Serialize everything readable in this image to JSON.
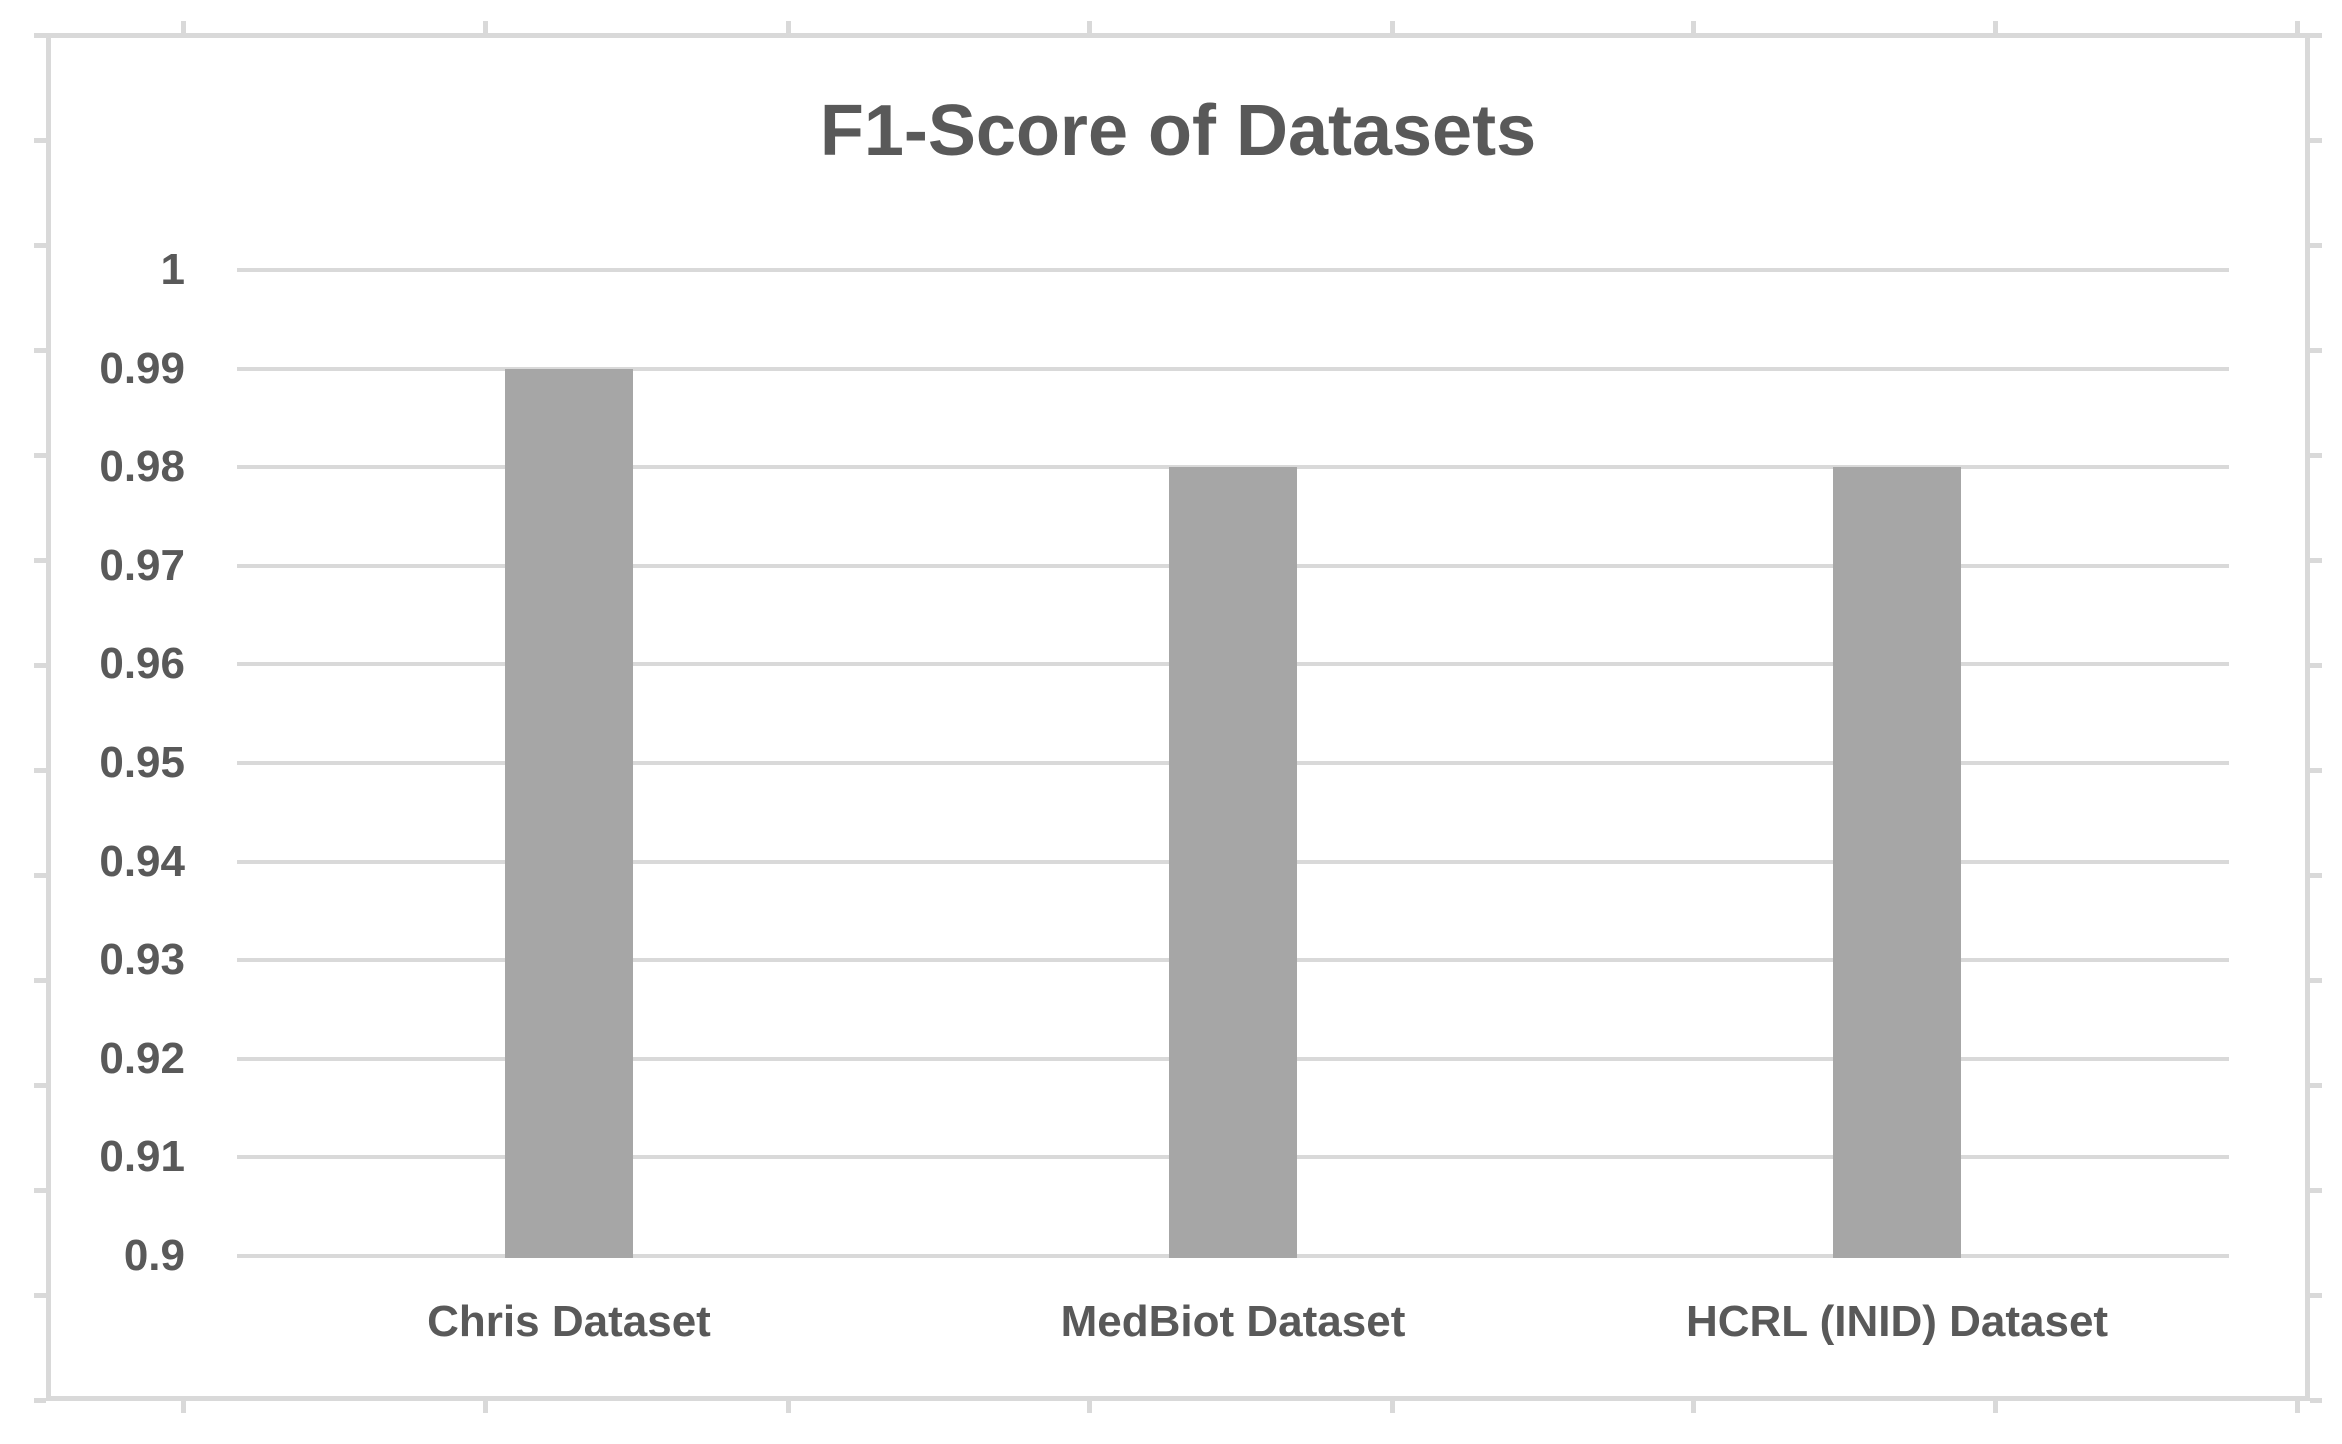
{
  "chart_data": {
    "type": "bar",
    "title": "F1-Score of Datasets",
    "categories": [
      "Chris Dataset",
      "MedBiot Dataset",
      "HCRL (INID) Dataset"
    ],
    "values": [
      0.99,
      0.98,
      0.98
    ],
    "xlabel": "",
    "ylabel": "",
    "ylim": [
      0.9,
      1.0
    ],
    "ytick_interval": 0.01,
    "yticks": [
      {
        "label": "1",
        "value": 1.0
      },
      {
        "label": "0.99",
        "value": 0.99
      },
      {
        "label": "0.98",
        "value": 0.98
      },
      {
        "label": "0.97",
        "value": 0.97
      },
      {
        "label": "0.96",
        "value": 0.96
      },
      {
        "label": "0.95",
        "value": 0.95
      },
      {
        "label": "0.94",
        "value": 0.94
      },
      {
        "label": "0.93",
        "value": 0.93
      },
      {
        "label": "0.92",
        "value": 0.92
      },
      {
        "label": "0.91",
        "value": 0.91
      },
      {
        "label": "0.9",
        "value": 0.9
      }
    ],
    "grid": true,
    "legend": false,
    "colors": {
      "bar": "#a6a6a6",
      "gridline": "#d9d9d9",
      "text": "#595959",
      "frame_border": "#d9d9d9"
    }
  }
}
